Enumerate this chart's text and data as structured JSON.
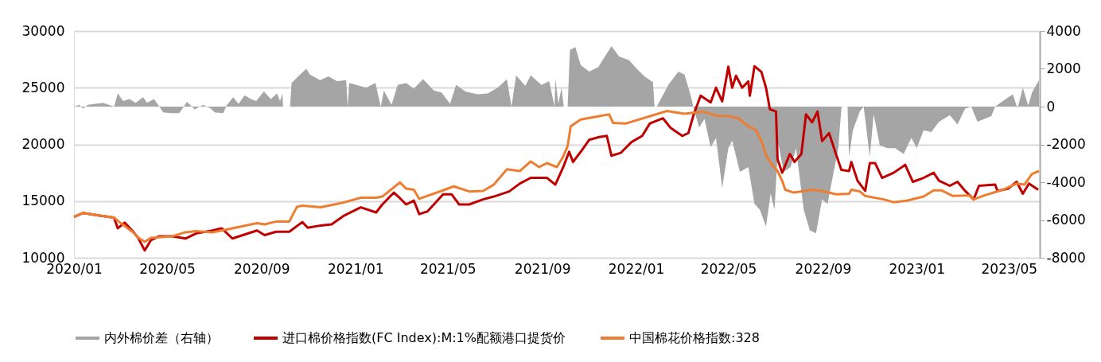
{
  "chart_data": {
    "type": "line",
    "xlim": [
      "2020-01-01",
      "2023-06-10"
    ],
    "xticks": [
      {
        "value": "2020-01",
        "label": "2020/01"
      },
      {
        "value": "2020-05",
        "label": "2020/05"
      },
      {
        "value": "2020-09",
        "label": "2020/09"
      },
      {
        "value": "2021-01",
        "label": "2021/01"
      },
      {
        "value": "2021-05",
        "label": "2021/05"
      },
      {
        "value": "2021-09",
        "label": "2021/09"
      },
      {
        "value": "2022-01",
        "label": "2022/01"
      },
      {
        "value": "2022-05",
        "label": "2022/05"
      },
      {
        "value": "2022-09",
        "label": "2022/09"
      },
      {
        "value": "2023-01",
        "label": "2023/01"
      },
      {
        "value": "2023-05",
        "label": "2023/05"
      }
    ],
    "ylim": [
      10000,
      30000
    ],
    "yticks": [
      10000,
      15000,
      20000,
      25000,
      30000
    ],
    "y2lim": [
      -8000,
      4000
    ],
    "y2ticks": [
      -8000,
      -6000,
      -4000,
      -2000,
      0,
      2000,
      4000
    ],
    "grid": "y",
    "legend": "bottom",
    "series": [
      {
        "name": "内外棉价差（右轴）",
        "type": "area",
        "axis": "y2",
        "color": "#a5a5a5",
        "x": [
          "2020-01-01",
          "2020-01-08",
          "2020-01-13",
          "2020-01-19",
          "2020-02-08",
          "2020-02-22",
          "2020-02-27",
          "2020-03-05",
          "2020-03-13",
          "2020-03-21",
          "2020-03-31",
          "2020-04-05",
          "2020-04-14",
          "2020-04-21",
          "2020-04-26",
          "2020-05-06",
          "2020-05-17",
          "2020-05-27",
          "2020-06-06",
          "2020-06-17",
          "2020-06-27",
          "2020-07-02",
          "2020-07-13",
          "2020-07-18",
          "2020-07-26",
          "2020-08-02",
          "2020-08-10",
          "2020-08-18",
          "2020-08-25",
          "2020-09-04",
          "2020-09-13",
          "2020-09-21",
          "2020-09-25",
          "2020-09-28",
          "2020-09-29",
          "2020-10-08",
          "2020-10-10",
          "2020-10-21",
          "2020-10-29",
          "2020-11-03",
          "2020-11-16",
          "2020-11-27",
          "2020-12-08",
          "2020-12-20",
          "2020-12-22",
          "2020-12-24",
          "2021-01-15",
          "2021-01-27",
          "2021-02-03",
          "2021-02-07",
          "2021-02-17",
          "2021-02-25",
          "2021-03-08",
          "2021-03-18",
          "2021-03-30",
          "2021-04-13",
          "2021-04-23",
          "2021-05-04",
          "2021-05-12",
          "2021-05-24",
          "2021-06-09",
          "2021-06-22",
          "2021-07-05",
          "2021-07-17",
          "2021-07-23",
          "2021-07-29",
          "2021-08-10",
          "2021-08-17",
          "2021-08-31",
          "2021-09-10",
          "2021-09-17",
          "2021-09-18",
          "2021-09-22",
          "2021-09-26",
          "2021-09-29",
          "2021-10-04",
          "2021-10-07",
          "2021-10-14",
          "2021-10-21",
          "2021-11-01",
          "2021-11-13",
          "2021-11-30",
          "2021-12-10",
          "2021-12-23",
          "2022-01-02",
          "2022-01-12",
          "2022-01-23",
          "2022-01-25",
          "2022-01-28",
          "2022-02-12",
          "2022-02-25",
          "2022-03-05",
          "2022-03-13",
          "2022-03-17",
          "2022-03-24",
          "2022-03-31",
          "2022-04-08",
          "2022-04-15",
          "2022-04-23",
          "2022-05-01",
          "2022-05-06",
          "2022-05-16",
          "2022-05-27",
          "2022-06-04",
          "2022-06-11",
          "2022-06-19",
          "2022-06-25",
          "2022-06-30",
          "2022-07-05",
          "2022-07-12",
          "2022-07-21",
          "2022-07-28",
          "2022-08-07",
          "2022-08-15",
          "2022-08-23",
          "2022-08-31",
          "2022-09-07",
          "2022-09-15",
          "2022-09-21",
          "2022-09-25",
          "2022-09-26",
          "2022-10-03",
          "2022-10-05",
          "2022-10-10",
          "2022-10-19",
          "2022-10-24",
          "2022-11-01",
          "2022-11-06",
          "2022-11-14",
          "2022-11-24",
          "2022-12-04",
          "2022-12-15",
          "2022-12-25",
          "2023-01-01",
          "2023-01-10",
          "2023-01-20",
          "2023-01-30",
          "2023-02-13",
          "2023-02-23",
          "2023-03-05",
          "2023-03-13",
          "2023-03-21",
          "2023-04-08",
          "2023-04-13",
          "2023-04-23",
          "2023-05-06",
          "2023-05-12",
          "2023-05-19",
          "2023-05-26",
          "2023-05-31",
          "2023-06-09"
        ],
        "values": [
          0,
          100,
          -100,
          100,
          200,
          0,
          700,
          300,
          400,
          200,
          500,
          200,
          400,
          0,
          -300,
          -350,
          -350,
          250,
          -150,
          100,
          -100,
          -300,
          -350,
          100,
          500,
          150,
          600,
          400,
          300,
          800,
          400,
          700,
          300,
          700,
          0,
          0,
          1250,
          1700,
          2000,
          1700,
          1400,
          1600,
          1350,
          1400,
          0,
          1250,
          1000,
          1250,
          0,
          850,
          100,
          1150,
          1250,
          950,
          1450,
          850,
          750,
          150,
          1150,
          800,
          650,
          700,
          1000,
          1450,
          0,
          1650,
          1100,
          1650,
          1150,
          1350,
          0,
          1500,
          150,
          1000,
          0,
          0,
          3000,
          3150,
          2200,
          1850,
          2100,
          3200,
          2650,
          2450,
          2000,
          1600,
          1300,
          0,
          0,
          1150,
          1850,
          1700,
          600,
          -100,
          -1100,
          -650,
          -2150,
          -1650,
          -4300,
          -2200,
          -1800,
          -3450,
          -3200,
          -5150,
          -5450,
          -6350,
          -4600,
          -5450,
          -1950,
          -3450,
          -3200,
          -2200,
          -5450,
          -6550,
          -6700,
          -4900,
          -5150,
          -3450,
          -2200,
          -100,
          0,
          0,
          -2650,
          -1250,
          -250,
          0,
          -2650,
          -400,
          -2050,
          -2200,
          -2200,
          -2500,
          -1650,
          -2200,
          -1250,
          -1350,
          -800,
          -450,
          -950,
          -100,
          0,
          -800,
          -500,
          0,
          300,
          650,
          -100,
          1000,
          50,
          750,
          1400
        ]
      },
      {
        "name": "进口棉价格指数(FC Index):M:1%配额港口提货价",
        "color": "#c00000",
        "x": [
          "2020-01-01",
          "2020-01-13",
          "2020-02-05",
          "2020-02-22",
          "2020-02-27",
          "2020-03-07",
          "2020-03-18",
          "2020-03-24",
          "2020-04-02",
          "2020-04-10",
          "2020-04-21",
          "2020-05-08",
          "2020-05-25",
          "2020-06-08",
          "2020-06-29",
          "2020-07-11",
          "2020-07-25",
          "2020-08-10",
          "2020-08-26",
          "2020-09-05",
          "2020-09-20",
          "2020-10-07",
          "2020-10-24",
          "2020-10-31",
          "2020-11-17",
          "2020-12-01",
          "2020-12-18",
          "2021-01-08",
          "2021-01-28",
          "2021-02-05",
          "2021-02-20",
          "2021-02-28",
          "2021-03-08",
          "2021-03-18",
          "2021-03-25",
          "2021-04-05",
          "2021-04-25",
          "2021-05-06",
          "2021-05-16",
          "2021-05-29",
          "2021-06-16",
          "2021-06-30",
          "2021-07-20",
          "2021-08-03",
          "2021-08-17",
          "2021-09-07",
          "2021-09-18",
          "2021-09-28",
          "2021-10-06",
          "2021-10-11",
          "2021-10-21",
          "2021-11-01",
          "2021-11-14",
          "2021-11-24",
          "2021-11-30",
          "2021-12-12",
          "2021-12-26",
          "2022-01-09",
          "2022-01-19",
          "2022-02-05",
          "2022-02-15",
          "2022-03-02",
          "2022-03-10",
          "2022-03-17",
          "2022-03-26",
          "2022-04-08",
          "2022-04-15",
          "2022-04-23",
          "2022-05-01",
          "2022-05-06",
          "2022-05-11",
          "2022-05-19",
          "2022-05-27",
          "2022-05-29",
          "2022-06-04",
          "2022-06-13",
          "2022-06-19",
          "2022-06-24",
          "2022-07-02",
          "2022-07-04",
          "2022-07-10",
          "2022-07-20",
          "2022-07-26",
          "2022-08-04",
          "2022-08-10",
          "2022-08-18",
          "2022-08-25",
          "2022-08-31",
          "2022-09-09",
          "2022-09-18",
          "2022-09-25",
          "2022-10-05",
          "2022-10-08",
          "2022-10-16",
          "2022-10-26",
          "2022-11-01",
          "2022-11-08",
          "2022-11-17",
          "2022-12-02",
          "2022-12-17",
          "2022-12-27",
          "2023-01-10",
          "2023-01-23",
          "2023-01-30",
          "2023-02-13",
          "2023-02-23",
          "2023-03-05",
          "2023-03-16",
          "2023-03-23",
          "2023-04-13",
          "2023-04-16",
          "2023-04-30",
          "2023-05-11",
          "2023-05-19",
          "2023-05-27",
          "2023-06-08"
        ],
        "values": [
          13600,
          13950,
          13700,
          13550,
          12600,
          13100,
          12300,
          11800,
          10650,
          11550,
          11900,
          11900,
          11700,
          12150,
          12400,
          12600,
          11700,
          12050,
          12400,
          12000,
          12300,
          12300,
          13150,
          12650,
          12850,
          12950,
          13750,
          14450,
          14000,
          14700,
          15750,
          15250,
          14700,
          15050,
          13850,
          14100,
          15600,
          15600,
          14700,
          14700,
          15150,
          15400,
          15850,
          16550,
          17050,
          17050,
          16450,
          17950,
          19350,
          18450,
          19350,
          20400,
          20650,
          20750,
          19000,
          19250,
          20200,
          20750,
          21850,
          22300,
          21450,
          20750,
          21000,
          22650,
          24300,
          23700,
          25000,
          23800,
          26850,
          25000,
          26050,
          25000,
          25550,
          24300,
          26900,
          26400,
          25000,
          23100,
          22900,
          18700,
          17500,
          19150,
          18450,
          19150,
          22650,
          21950,
          22900,
          20300,
          21000,
          19150,
          17750,
          17650,
          18450,
          16800,
          15900,
          18350,
          18350,
          17050,
          17500,
          18200,
          16700,
          17050,
          17500,
          16800,
          16350,
          16700,
          15900,
          15150,
          16350,
          16450,
          15900,
          16100,
          16700,
          15650,
          16550,
          16000
        ]
      },
      {
        "name": "中国棉花价格指数:328",
        "color": "#ed7d31",
        "x": [
          "2020-01-01",
          "2020-01-13",
          "2020-02-22",
          "2020-02-29",
          "2020-03-18",
          "2020-03-24",
          "2020-04-02",
          "2020-04-10",
          "2020-05-08",
          "2020-05-25",
          "2020-06-08",
          "2020-06-29",
          "2020-07-25",
          "2020-08-26",
          "2020-09-05",
          "2020-09-20",
          "2020-10-07",
          "2020-10-17",
          "2020-10-24",
          "2020-11-17",
          "2020-12-18",
          "2021-01-08",
          "2021-01-28",
          "2021-02-05",
          "2021-02-28",
          "2021-03-08",
          "2021-03-18",
          "2021-03-25",
          "2021-04-25",
          "2021-05-09",
          "2021-05-29",
          "2021-06-16",
          "2021-06-30",
          "2021-07-17",
          "2021-08-03",
          "2021-08-17",
          "2021-08-28",
          "2021-09-07",
          "2021-09-20",
          "2021-09-28",
          "2021-10-04",
          "2021-10-08",
          "2021-10-21",
          "2021-11-11",
          "2021-11-27",
          "2021-12-02",
          "2021-12-19",
          "2022-01-15",
          "2022-02-10",
          "2022-03-05",
          "2022-03-29",
          "2022-04-15",
          "2022-05-01",
          "2022-05-14",
          "2022-05-27",
          "2022-06-06",
          "2022-06-13",
          "2022-06-20",
          "2022-06-27",
          "2022-07-04",
          "2022-07-10",
          "2022-07-14",
          "2022-07-25",
          "2022-08-18",
          "2022-08-31",
          "2022-09-18",
          "2022-10-05",
          "2022-10-08",
          "2022-10-19",
          "2022-10-26",
          "2022-11-19",
          "2022-12-02",
          "2022-12-20",
          "2023-01-10",
          "2023-01-23",
          "2023-02-02",
          "2023-02-17",
          "2023-03-10",
          "2023-03-16",
          "2023-03-30",
          "2023-04-23",
          "2023-05-11",
          "2023-05-21",
          "2023-05-31",
          "2023-06-09"
        ],
        "values": [
          13600,
          13950,
          13550,
          13150,
          12250,
          11800,
          11400,
          11750,
          11900,
          12250,
          12350,
          12250,
          12600,
          13050,
          12950,
          13200,
          13200,
          14500,
          14600,
          14450,
          14900,
          15300,
          15300,
          15400,
          16650,
          16100,
          16000,
          15200,
          15950,
          16300,
          15850,
          15900,
          16450,
          17800,
          17650,
          18500,
          18000,
          18350,
          18000,
          18900,
          19850,
          21600,
          22200,
          22450,
          22650,
          21900,
          21850,
          22400,
          22950,
          22700,
          22900,
          22550,
          22500,
          22300,
          21600,
          21250,
          20300,
          18900,
          18200,
          17650,
          16800,
          16000,
          15750,
          16000,
          15900,
          15600,
          15650,
          16000,
          15850,
          15450,
          15150,
          14900,
          15050,
          15400,
          15950,
          15950,
          15450,
          15500,
          15150,
          15500,
          16000,
          16550,
          16450,
          17400,
          17650
        ]
      }
    ]
  }
}
